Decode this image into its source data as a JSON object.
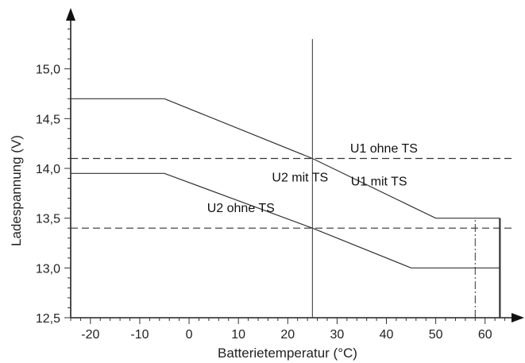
{
  "chart_data": {
    "type": "line",
    "xlabel": "Batterietemperatur (°C)",
    "ylabel": "Ladespannung (V)",
    "xlim": [
      -24,
      66
    ],
    "ylim": [
      12.5,
      15.5
    ],
    "x_ticks": [
      {
        "value": -20,
        "label": "-20"
      },
      {
        "value": -10,
        "label": "-10"
      },
      {
        "value": 0,
        "label": "0"
      },
      {
        "value": 10,
        "label": "10"
      },
      {
        "value": 20,
        "label": "20"
      },
      {
        "value": 30,
        "label": "30"
      },
      {
        "value": 40,
        "label": "40"
      },
      {
        "value": 50,
        "label": "50"
      },
      {
        "value": 60,
        "label": "60"
      }
    ],
    "y_ticks": [
      {
        "value": 12.5,
        "label": "12,5"
      },
      {
        "value": 13.0,
        "label": "13,0"
      },
      {
        "value": 13.5,
        "label": "13,5"
      },
      {
        "value": 14.0,
        "label": "14,0"
      },
      {
        "value": 14.5,
        "label": "14,5"
      },
      {
        "value": 15.0,
        "label": "15,0"
      }
    ],
    "x_minor_step": 2,
    "y_minor_step": 0.1,
    "series": [
      {
        "name": "U1 mit TS",
        "style": "solid",
        "color": "#333333",
        "x": [
          -24,
          -5,
          25,
          50,
          63
        ],
        "y": [
          14.7,
          14.7,
          14.1,
          13.5,
          13.5
        ]
      },
      {
        "name": "U2 mit TS",
        "style": "solid",
        "color": "#333333",
        "x": [
          -24,
          -5,
          25,
          45,
          63
        ],
        "y": [
          13.95,
          13.95,
          13.4,
          13.0,
          13.0
        ]
      },
      {
        "name": "U1 ohne TS",
        "style": "dashed",
        "color": "#333333",
        "x": [
          -24,
          66
        ],
        "y": [
          14.1,
          14.1
        ]
      },
      {
        "name": "U2 ohne TS",
        "style": "dashed",
        "color": "#333333",
        "x": [
          -24,
          66
        ],
        "y": [
          13.4,
          13.4
        ]
      }
    ],
    "vertical_lines": [
      {
        "x": 25,
        "y_from": 12.5,
        "y_to": 15.3,
        "style": "solid"
      },
      {
        "x": 58,
        "y_from": 12.5,
        "y_to": 13.5,
        "style": "dashdot"
      },
      {
        "x": 63,
        "y_from": 12.5,
        "y_to": 13.5,
        "style": "solid-bold"
      }
    ],
    "annotations": [
      {
        "text": "U1 ohne TS",
        "x": 39.5,
        "y": 14.16
      },
      {
        "text": "U1 mit TS",
        "x": 38.5,
        "y": 13.83
      },
      {
        "text": "U2 mit TS",
        "x": 22.5,
        "y": 13.87
      },
      {
        "text": "U2 ohne TS",
        "x": 10.5,
        "y": 13.56
      }
    ],
    "grid": false,
    "legend": "none"
  }
}
